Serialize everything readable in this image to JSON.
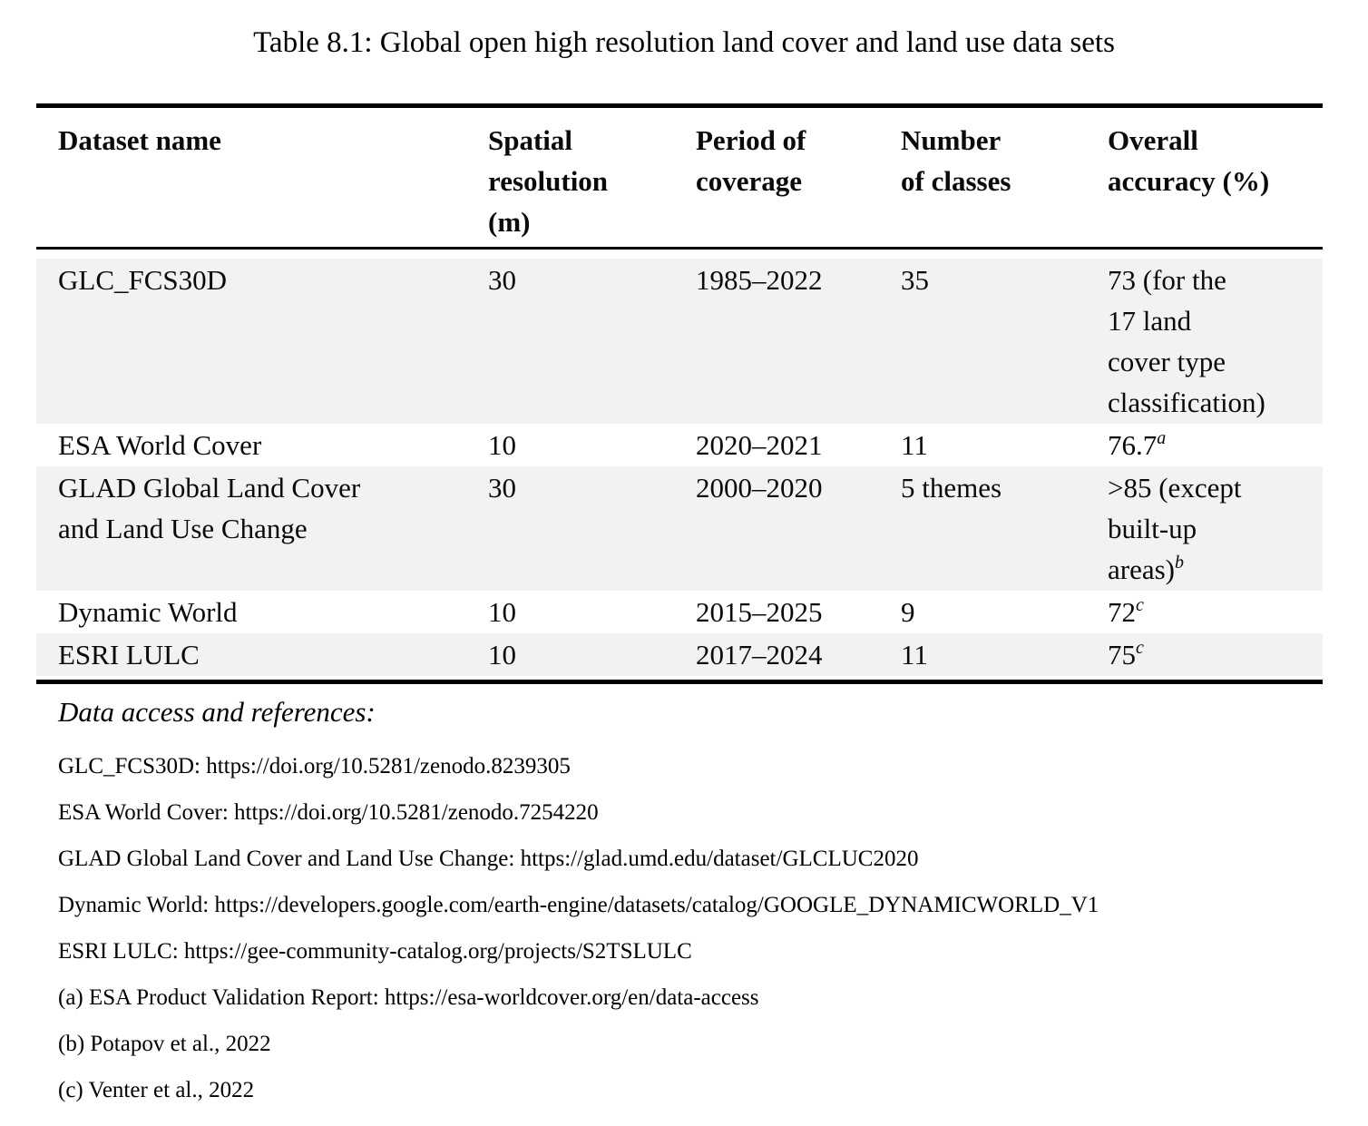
{
  "title": "Table 8.1: Global open high resolution land cover and land use data sets",
  "table": {
    "headers": [
      "Dataset name",
      "Spatial\nresolution\n(m)",
      "Period of\ncoverage",
      "Number\nof classes",
      "Overall\naccuracy (%)"
    ],
    "rows": [
      {
        "name": "GLC_FCS30D",
        "resolution": "30",
        "period": "1985–2022",
        "classes": "35",
        "accuracy": "73 (for the\n17 land\ncover type\nclassification)",
        "accuracy_sup": ""
      },
      {
        "name": "ESA World Cover",
        "resolution": "10",
        "period": "2020–2021",
        "classes": "11",
        "accuracy": "76.7",
        "accuracy_sup": "a"
      },
      {
        "name": "GLAD Global Land Cover\nand Land Use Change",
        "resolution": "30",
        "period": "2000–2020",
        "classes": "5 themes",
        "accuracy": ">85 (except\nbuilt-up\nareas)",
        "accuracy_sup": "b"
      },
      {
        "name": "Dynamic World",
        "resolution": "10",
        "period": "2015–2025",
        "classes": "9",
        "accuracy": "72",
        "accuracy_sup": "c"
      },
      {
        "name": "ESRI LULC",
        "resolution": "10",
        "period": "2017–2024",
        "classes": "11",
        "accuracy": "75",
        "accuracy_sup": "c"
      }
    ]
  },
  "footer": {
    "heading": "Data access and references:",
    "lines": [
      "GLC_FCS30D: https://doi.org/10.5281/zenodo.8239305",
      "ESA World Cover: https://doi.org/10.5281/zenodo.7254220",
      "GLAD Global Land Cover and Land Use Change: https://glad.umd.edu/dataset/GLCLUC2020",
      "Dynamic World: https://developers.google.com/earth-engine/datasets/catalog/GOOGLE_DYNAMICWORLD_V1",
      "ESRI LULC: https://gee-community-catalog.org/projects/S2TSLULC",
      "(a) ESA Product Validation Report: https://esa-worldcover.org/en/data-access",
      "(b) Potapov et al., 2022",
      "(c) Venter et al., 2022"
    ]
  },
  "colors": {
    "row_shade": "#f2f2f2",
    "rule": "#000000",
    "text": "#0a0a0a"
  }
}
